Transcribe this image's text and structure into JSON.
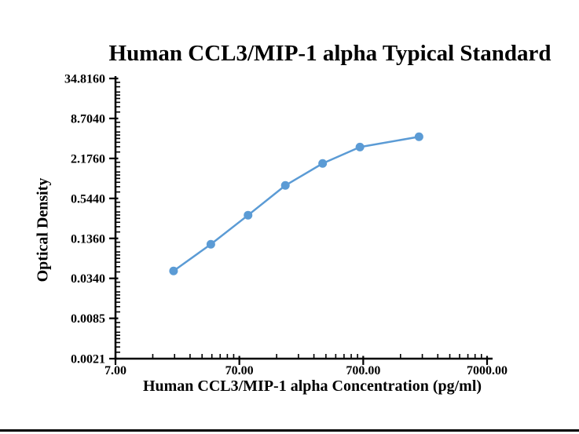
{
  "window": {
    "background": "#ffffff",
    "bottom_rule_color": "#000000"
  },
  "chart_data": {
    "type": "line",
    "title": "Human CCL3/MIP-1 alpha Typical Standard",
    "xlabel": "Human CCL3/MIP-1 alpha Concentration (pg/ml)",
    "ylabel": "Optical Density",
    "x_scale": "log",
    "y_scale": "log",
    "xlim": [
      7,
      7000
    ],
    "ylim": [
      0.0021,
      34.816
    ],
    "grid": false,
    "legend": false,
    "axis_color": "#000000",
    "x_ticks": [
      {
        "value": 7,
        "label": "7.00"
      },
      {
        "value": 70,
        "label": "70.00"
      },
      {
        "value": 700,
        "label": "700.00"
      },
      {
        "value": 7000,
        "label": "7000.00"
      }
    ],
    "y_ticks": [
      {
        "value": 34.816,
        "label": "34.8160"
      },
      {
        "value": 8.704,
        "label": "8.7040"
      },
      {
        "value": 2.176,
        "label": "2.1760"
      },
      {
        "value": 0.544,
        "label": "0.5440"
      },
      {
        "value": 0.136,
        "label": "0.1360"
      },
      {
        "value": 0.034,
        "label": "0.0340"
      },
      {
        "value": 0.0085,
        "label": "0.0085"
      },
      {
        "value": 0.0021,
        "label": "0.0021"
      }
    ],
    "x_minor_multipliers": [
      2,
      3,
      4,
      5,
      6,
      7,
      8,
      9
    ],
    "y_minor_multipliers": [
      1.25,
      1.5,
      1.75,
      2,
      2.25,
      2.5,
      3,
      3.5
    ],
    "series": [
      {
        "name": "Human CCL3/MIP-1 alpha Typical Standard",
        "color": "#5B9BD5",
        "marker": "circle",
        "x": [
          20.6,
          41.2,
          82.3,
          164.6,
          329.2,
          658.4,
          1975
        ],
        "y": [
          0.044,
          0.111,
          0.304,
          0.853,
          1.83,
          3.23,
          4.61
        ]
      }
    ]
  }
}
